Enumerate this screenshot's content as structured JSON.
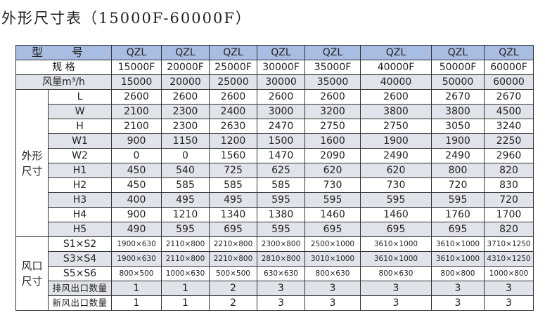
{
  "title": "外形尺寸表（15000F-60000F）",
  "header": {
    "model_label": "型 号",
    "spec_label": "规 格",
    "airflow_label": "风量m³/h",
    "models": [
      "QZL",
      "QZL",
      "QZL",
      "QZL",
      "QZL",
      "QZL",
      "QZL",
      "QZL"
    ],
    "specs": [
      "15000F",
      "20000F",
      "25000F",
      "30000F",
      "35000F",
      "40000F",
      "50000F",
      "60000F"
    ],
    "airflow": [
      "15000",
      "20000",
      "25000",
      "30000",
      "35000",
      "40000",
      "50000",
      "60000"
    ]
  },
  "dimensions": {
    "group_label": "外形尺寸",
    "rows": [
      {
        "label": "L",
        "values": [
          "2600",
          "2600",
          "2600",
          "2600",
          "2600",
          "2600",
          "2670",
          "2670"
        ]
      },
      {
        "label": "W",
        "values": [
          "2100",
          "2300",
          "2400",
          "3000",
          "3200",
          "3800",
          "3800",
          "4500"
        ]
      },
      {
        "label": "H",
        "values": [
          "2100",
          "2300",
          "2630",
          "2470",
          "2750",
          "2750",
          "3050",
          "3240"
        ]
      },
      {
        "label": "W1",
        "values": [
          "900",
          "1150",
          "1200",
          "1500",
          "1600",
          "1900",
          "1900",
          "2250"
        ]
      },
      {
        "label": "W2",
        "values": [
          "0",
          "0",
          "1560",
          "1470",
          "2090",
          "2490",
          "2490",
          "2960"
        ]
      },
      {
        "label": "H1",
        "values": [
          "450",
          "540",
          "725",
          "625",
          "620",
          "620",
          "800",
          "820"
        ]
      },
      {
        "label": "H2",
        "values": [
          "450",
          "585",
          "585",
          "585",
          "730",
          "730",
          "720",
          "830"
        ]
      },
      {
        "label": "H3",
        "values": [
          "400",
          "495",
          "495",
          "595",
          "595",
          "595",
          "595",
          "720"
        ]
      },
      {
        "label": "H4",
        "values": [
          "900",
          "1210",
          "1340",
          "1380",
          "1460",
          "1460",
          "1760",
          "1700"
        ]
      },
      {
        "label": "H5",
        "values": [
          "490",
          "595",
          "695",
          "595",
          "695",
          "695",
          "695",
          "820"
        ]
      }
    ]
  },
  "outlets": {
    "group_label": "风口尺寸",
    "rows": [
      {
        "label": "S1×S2",
        "values": [
          "1900×630",
          "2110×800",
          "2210×800",
          "2300×800",
          "2500×1000",
          "3610×1000",
          "3610×1000",
          "3710×1250"
        ]
      },
      {
        "label": "S3×S4",
        "values": [
          "1900×630",
          "2110×800",
          "2210×800",
          "2810×800",
          "3010×1000",
          "3610×1000",
          "3610×1000",
          "4310×1250"
        ]
      },
      {
        "label": "S5×S6",
        "values": [
          "800×500",
          "1000×630",
          "500×500",
          "630×630",
          "800×630",
          "800×630",
          "800×800",
          "1000×800"
        ]
      },
      {
        "label": "排风出口数量",
        "values": [
          "1",
          "1",
          "2",
          "3",
          "3",
          "3",
          "3",
          "3"
        ]
      },
      {
        "label": "新风出口数量",
        "values": [
          "1",
          "1",
          "2",
          "3",
          "3",
          "3",
          "3",
          "3"
        ]
      }
    ]
  },
  "colors": {
    "header_blue": "#a9bde2",
    "row_gray": "#e1e3ea"
  }
}
